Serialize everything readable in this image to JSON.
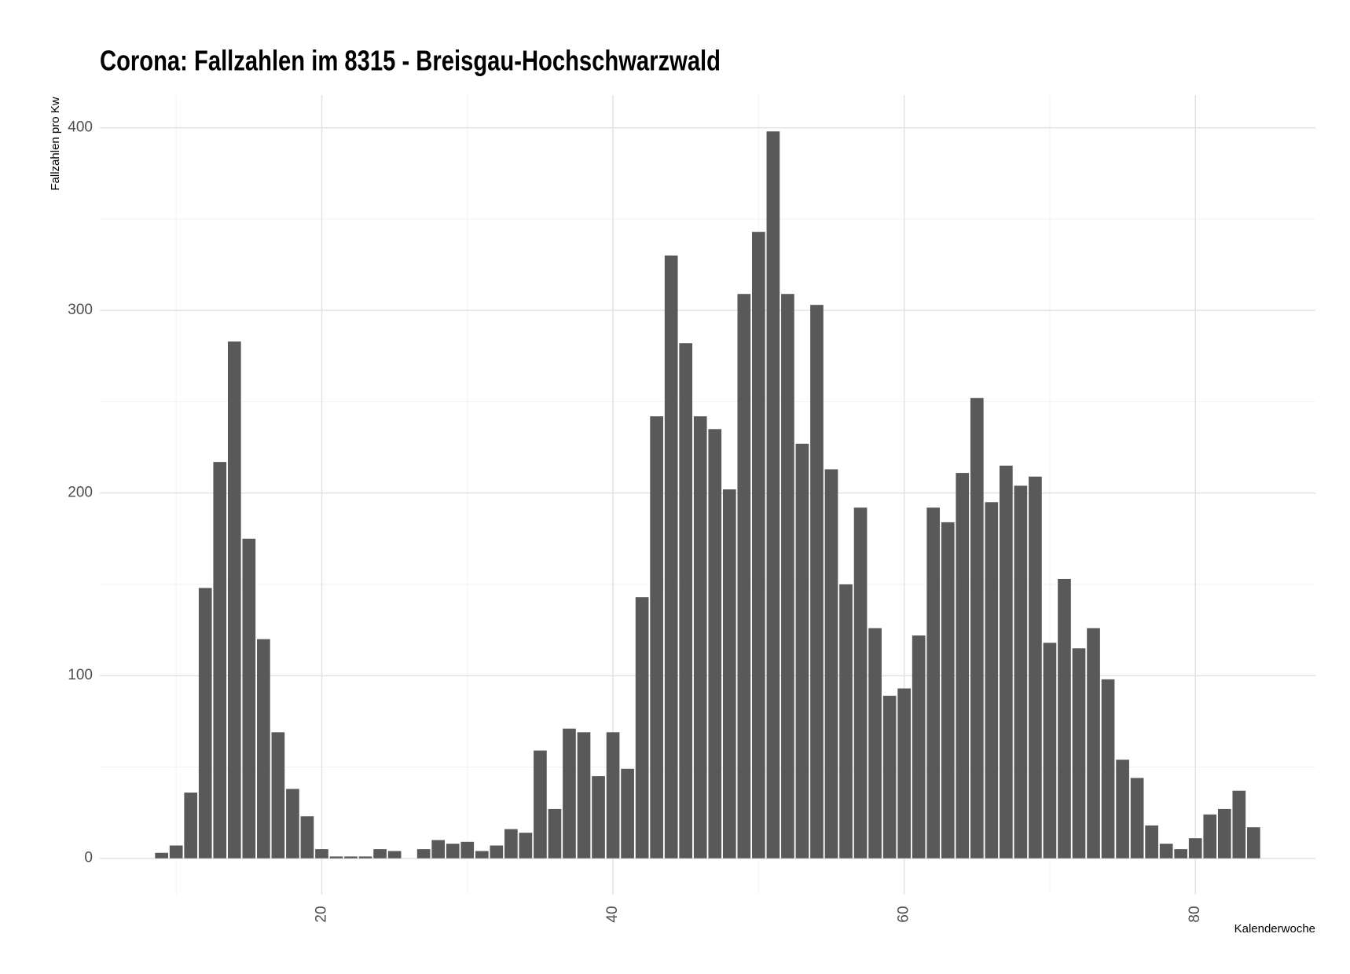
{
  "chart_data": {
    "type": "bar",
    "title": "Corona: Fallzahlen im 8315 - Breisgau-Hochschwarzwald",
    "x_label": "Kalenderwoche",
    "y_label": "Fallzahlen pro Kw",
    "x": [
      9,
      10,
      11,
      12,
      13,
      14,
      15,
      16,
      17,
      18,
      19,
      20,
      21,
      22,
      23,
      24,
      25,
      26,
      27,
      28,
      29,
      30,
      31,
      32,
      33,
      34,
      35,
      36,
      37,
      38,
      39,
      40,
      41,
      42,
      43,
      44,
      45,
      46,
      47,
      48,
      49,
      50,
      51,
      52,
      53,
      54,
      55,
      56,
      57,
      58,
      59,
      60,
      61,
      62,
      63,
      64,
      65,
      66,
      67,
      68,
      69,
      70,
      71,
      72,
      73,
      74,
      75,
      76,
      77,
      78,
      79,
      80,
      81,
      82,
      83,
      84
    ],
    "values": [
      3,
      7,
      36,
      148,
      217,
      283,
      175,
      120,
      69,
      38,
      23,
      5,
      1,
      1,
      1,
      5,
      4,
      0,
      5,
      10,
      8,
      9,
      4,
      7,
      16,
      14,
      59,
      27,
      71,
      69,
      45,
      69,
      49,
      143,
      242,
      330,
      282,
      242,
      235,
      202,
      309,
      343,
      398,
      309,
      227,
      303,
      213,
      150,
      192,
      126,
      89,
      93,
      122,
      192,
      184,
      211,
      252,
      195,
      215,
      204,
      209,
      118,
      153,
      115,
      126,
      98,
      54,
      44,
      18,
      8,
      5,
      11,
      24,
      27,
      37,
      17
    ],
    "color": "#595959",
    "xlim": [
      4.755,
      88.245
    ],
    "xticks": [
      20,
      40,
      60,
      80
    ],
    "xminor": [
      10,
      30,
      50,
      70
    ],
    "ylim": [
      -19.9,
      417.9
    ],
    "yticks": [
      0,
      100,
      200,
      300,
      400
    ],
    "yminor": [
      50,
      150,
      250,
      350
    ],
    "bar_width": 0.9,
    "grid": true
  }
}
